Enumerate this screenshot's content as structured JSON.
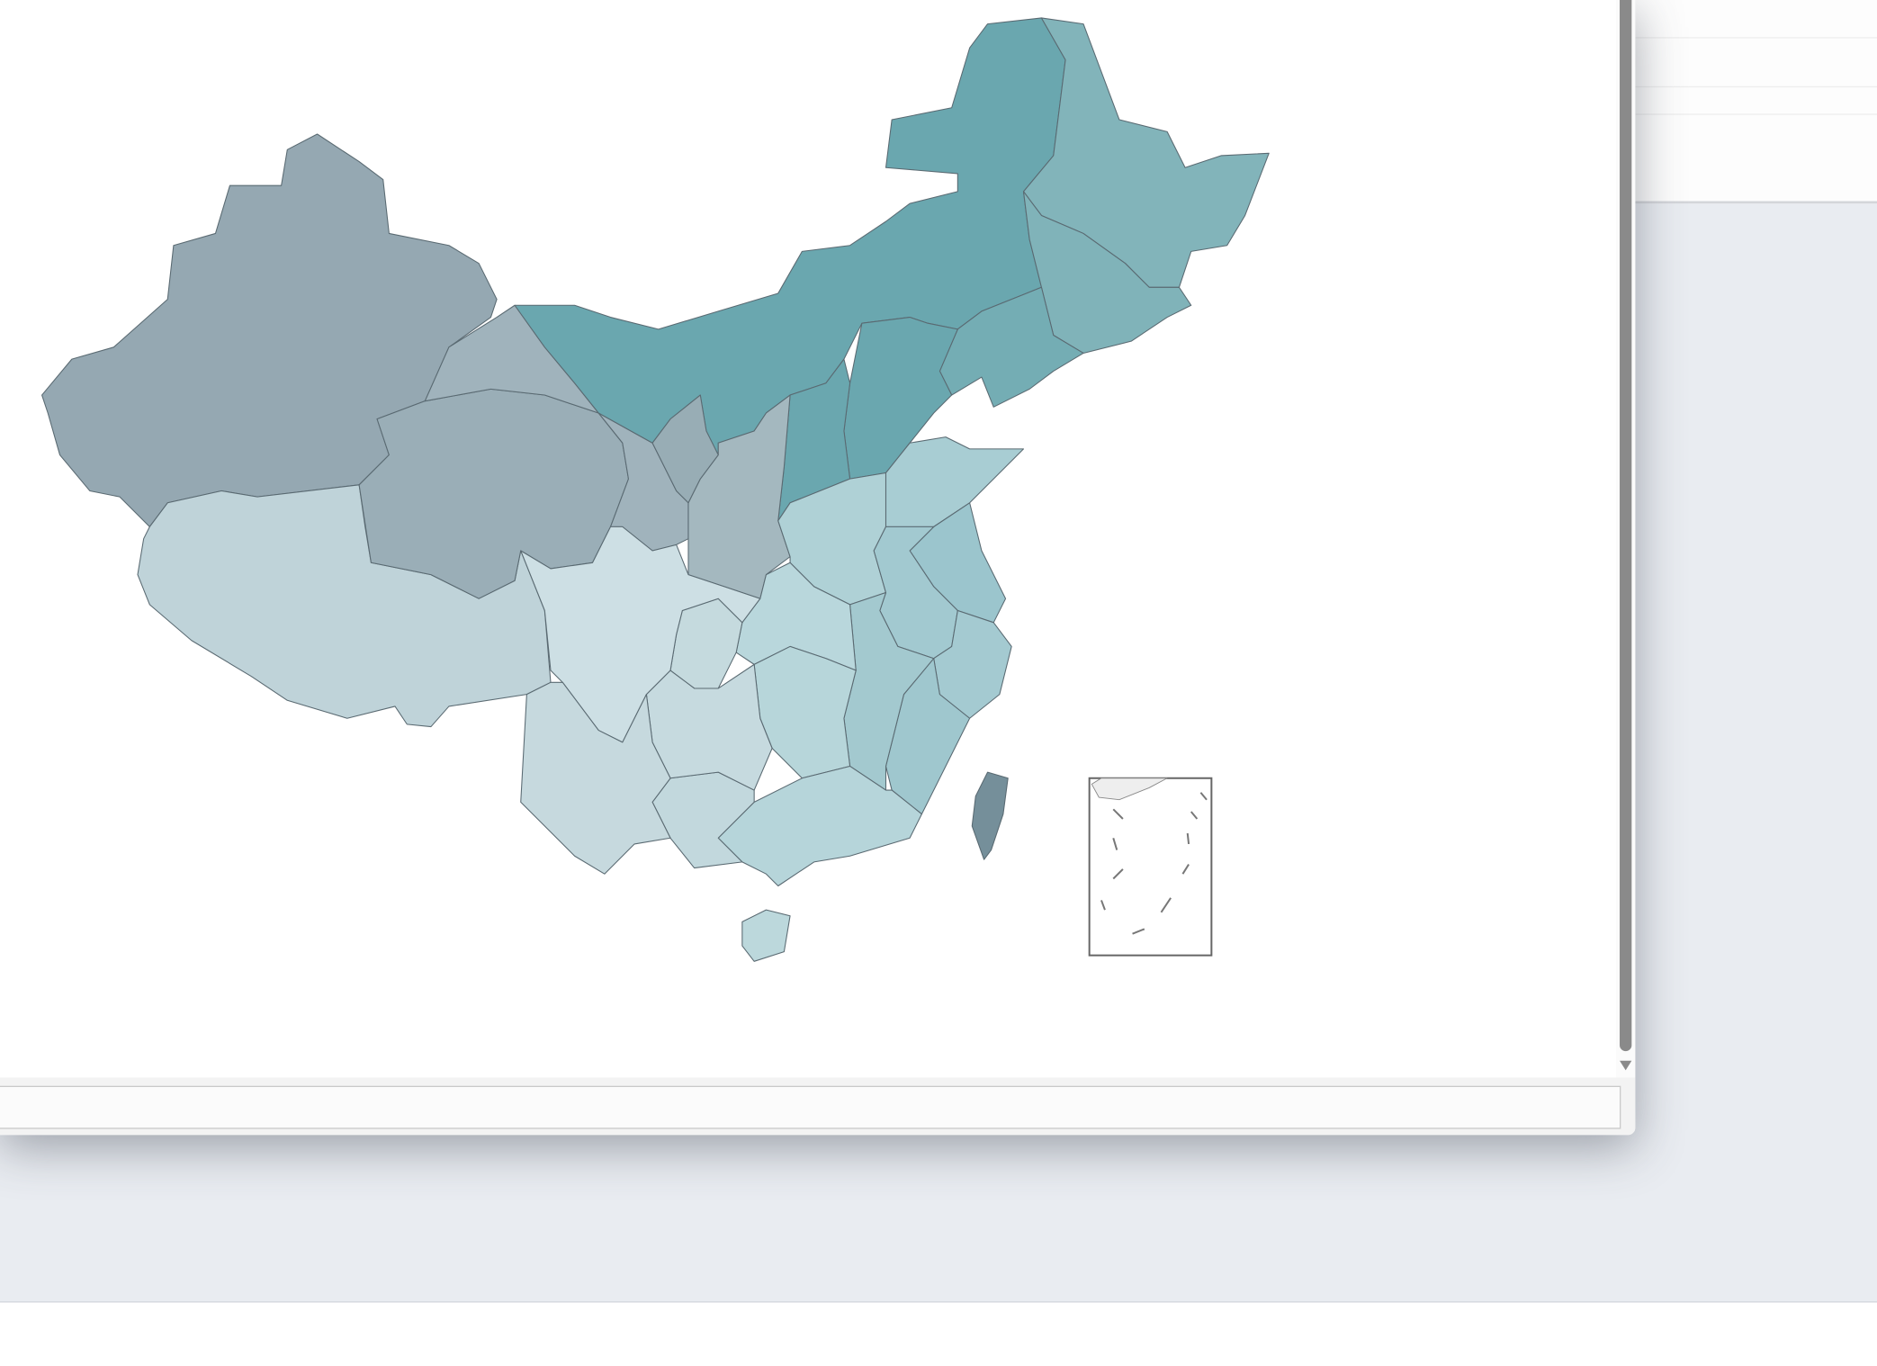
{
  "map": {
    "stroke_color": "#5a6a72",
    "inset_stroke": "#666666",
    "region_fills": {
      "xinjiang": "#95a8b2",
      "tibet": "#bfd3d9",
      "qinghai": "#9aaeb7",
      "gansu": "#a0b3bc",
      "inner-mongolia": "#6aa7af",
      "heilongjiang": "#82b4ba",
      "jilin": "#80b3b9",
      "liaoning": "#74adb4",
      "hebei": "#6aa7af",
      "shanxi": "#6aa7af",
      "shaanxi": "#a4b8bf",
      "ningxia": "#98adb5",
      "henan": "#afd1d6",
      "shandong": "#a8cdd3",
      "jiangsu": "#9bc5cd",
      "anhui": "#a2c9d0",
      "zhejiang": "#a4cad1",
      "fujian": "#9fc7ce",
      "jiangxi": "#a3c9cf",
      "hubei": "#b9d7dc",
      "hunan": "#b7d6da",
      "guangdong": "#b6d5da",
      "hainan": "#bcd8dc",
      "guangxi": "#c2d8dd",
      "chongqing": "#c5dade",
      "guizhou": "#c6dadf",
      "sichuan": "#cddfe4",
      "yunnan": "#c6d9de",
      "taiwan": "#758f9a"
    }
  }
}
